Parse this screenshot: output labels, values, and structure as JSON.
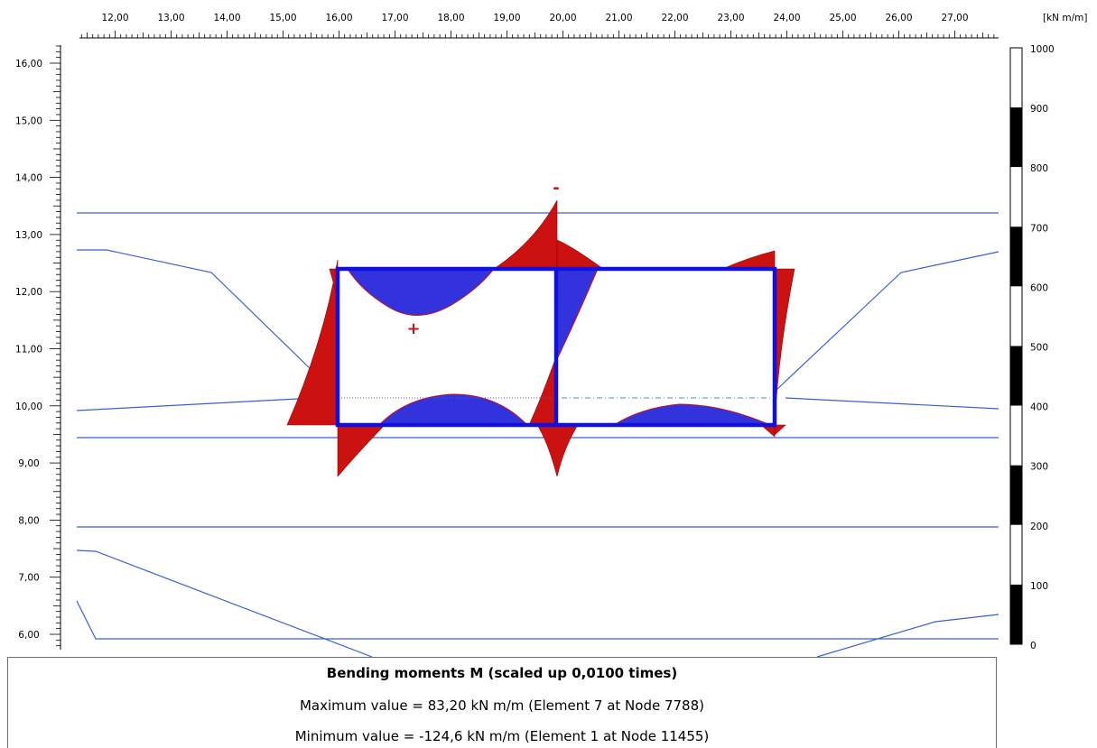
{
  "plot": {
    "x_ticks": [
      "12,00",
      "13,00",
      "14,00",
      "15,00",
      "16,00",
      "17,00",
      "18,00",
      "19,00",
      "20,00",
      "21,00",
      "22,00",
      "23,00",
      "24,00",
      "25,00",
      "26,00",
      "27,00"
    ],
    "y_ticks": [
      "16,00",
      "15,00",
      "14,00",
      "13,00",
      "12,00",
      "11,00",
      "10,00",
      "9,00",
      "8,00",
      "7,00",
      "6,00"
    ],
    "sign_negative": "-",
    "sign_positive": "+",
    "colors": {
      "moment_red": "#cc1111",
      "moment_blue": "#3333dd",
      "structure_blue": "#1010e0",
      "soil_line": "#3a5fd8",
      "axis": "#000000"
    }
  },
  "legend": {
    "unit": "[kN m/m]",
    "labels": [
      "1000",
      "900",
      "800",
      "700",
      "600",
      "500",
      "400",
      "300",
      "200",
      "100",
      "0"
    ],
    "band_colors": [
      "#ffffff",
      "#000000",
      "#ffffff",
      "#000000",
      "#ffffff",
      "#000000",
      "#ffffff",
      "#000000",
      "#ffffff",
      "#000000"
    ]
  },
  "info": {
    "title": "Bending moments M (scaled up 0,0100 times)",
    "max_line": "Maximum value = 83,20 kN m/m (Element 7 at Node 7788)",
    "min_line": "Minimum value = -124,6 kN m/m (Element 1 at Node 11455)"
  }
}
